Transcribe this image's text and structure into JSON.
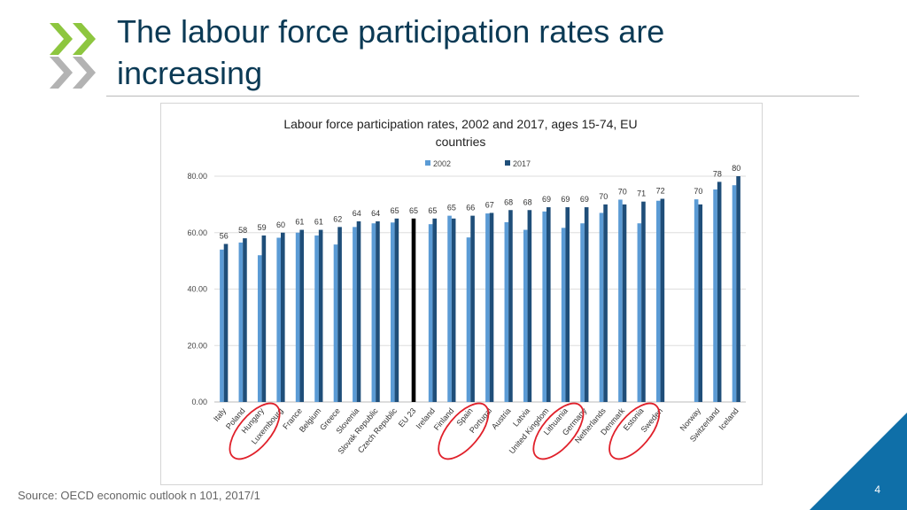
{
  "slide": {
    "title_line1": "The labour force participation rates are",
    "title_line2": "increasing",
    "source": "Source: OECD economic outlook n 101, 2017/1",
    "page_number": "4",
    "colors": {
      "title": "#0b3a55",
      "logo_green": "#8dc63f",
      "logo_grey": "#b3b3b3",
      "corner": "#0f6fa8",
      "circle": "#e0202a"
    }
  },
  "chart_data": {
    "type": "bar",
    "title_line1": "Labour force participation rates, 2002 and 2017, ages 15-74, EU",
    "title_line2": "countries",
    "legend": [
      "2002",
      "2017"
    ],
    "legend_position": "top-center",
    "ylim": [
      0,
      80
    ],
    "yticks": [
      "0.00",
      "20.00",
      "40.00",
      "60.00",
      "80.00"
    ],
    "grid": true,
    "colors": {
      "2002": "#5b9bd5",
      "2017": "#1f4e79",
      "eu": "#000000"
    },
    "categories": [
      "Italy",
      "Poland",
      "Hungary",
      "Luxembourg",
      "France",
      "Belgium",
      "Greece",
      "Slovenia",
      "Slovak Republic",
      "Czech Republic",
      "EU 23",
      "Ireland",
      "Finland",
      "Spain",
      "Portugal",
      "Austria",
      "Latvia",
      "United Kingdom",
      "Lithuania",
      "Germany",
      "Netherlands",
      "Denmark",
      "Estonia",
      "Sweden",
      "",
      "Norway",
      "Switzerland",
      "Iceland"
    ],
    "series": [
      {
        "name": "2002",
        "values": [
          54,
          56.5,
          52,
          58.2,
          60,
          59,
          55.8,
          62,
          63.3,
          63.6,
          null,
          63,
          66,
          58.3,
          66.8,
          63.7,
          61,
          67.5,
          61.7,
          63.3,
          67,
          71.7,
          63.3,
          71.3,
          null,
          71.8,
          75.3,
          76.8
        ]
      },
      {
        "name": "2017",
        "values": [
          56,
          58,
          59,
          60,
          61,
          61,
          62,
          64,
          64,
          65,
          65,
          65,
          65,
          66,
          67,
          68,
          68,
          69,
          69,
          69,
          70,
          70,
          71,
          72,
          null,
          70,
          78,
          80
        ]
      }
    ],
    "data_labels": [
      "56",
      "58",
      "59",
      "60",
      "61",
      "61",
      "62",
      "64",
      "64",
      "65",
      "65",
      "65",
      "65",
      "66",
      "67",
      "68",
      "68",
      "69",
      "69",
      "69",
      "70",
      "70",
      "71",
      "72",
      "",
      "70",
      "78",
      "80"
    ],
    "annotations": {
      "circled": [
        "Hungary",
        "Spain",
        "Lithuania",
        "Estonia"
      ]
    }
  }
}
